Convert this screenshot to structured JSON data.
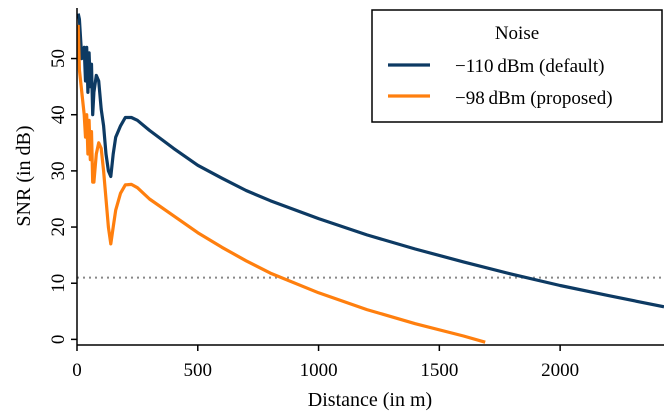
{
  "chart_data": {
    "type": "line",
    "title": "",
    "xlabel": "Distance (in m)",
    "ylabel": "SNR (in dB)",
    "xlim": [
      0,
      2430
    ],
    "ylim": [
      -1,
      59
    ],
    "xticks": [
      0,
      500,
      1000,
      1500,
      2000
    ],
    "yticks": [
      0,
      10,
      20,
      30,
      40,
      50
    ],
    "legend": {
      "title": "Noise",
      "placement": "top-right",
      "entries": [
        "−110 dBm (default)",
        "−98 dBm (proposed)"
      ]
    },
    "reference_line": {
      "y": 11,
      "style": "dotted",
      "color": "#888888"
    },
    "series": [
      {
        "name": "−110 dBm (default)",
        "color": "#0d3a63",
        "x": [
          5,
          10,
          20,
          30,
          35,
          40,
          45,
          50,
          55,
          60,
          65,
          70,
          80,
          90,
          100,
          110,
          120,
          130,
          140,
          150,
          160,
          180,
          200,
          225,
          250,
          300,
          400,
          500,
          600,
          700,
          800,
          1000,
          1200,
          1400,
          1600,
          1800,
          2000,
          2200,
          2430
        ],
        "y": [
          58,
          57,
          50,
          52,
          46,
          52,
          44,
          51,
          45,
          49,
          40,
          44,
          47,
          46,
          41,
          38,
          33,
          30,
          29,
          33,
          36,
          38,
          39.5,
          39.5,
          39,
          37.2,
          34,
          31,
          28.7,
          26.5,
          24.7,
          21.5,
          18.6,
          16.1,
          13.8,
          11.6,
          9.6,
          7.8,
          5.8
        ]
      },
      {
        "name": "−98 dBm (proposed)",
        "color": "#ff7f0e",
        "x": [
          5,
          10,
          20,
          30,
          35,
          40,
          45,
          50,
          55,
          60,
          65,
          70,
          80,
          90,
          100,
          110,
          120,
          130,
          140,
          150,
          160,
          180,
          200,
          225,
          250,
          300,
          400,
          500,
          600,
          700,
          800,
          1000,
          1200,
          1400,
          1600,
          1690
        ],
        "y": [
          56,
          48,
          44,
          40,
          36,
          40,
          33,
          39,
          32,
          37,
          28,
          28,
          33,
          35,
          34,
          30,
          25,
          20,
          17,
          20,
          23,
          26,
          27.5,
          27.6,
          27,
          25,
          22,
          19,
          16.4,
          14,
          11.8,
          8.3,
          5.3,
          2.8,
          0.6,
          -0.5
        ]
      }
    ]
  }
}
